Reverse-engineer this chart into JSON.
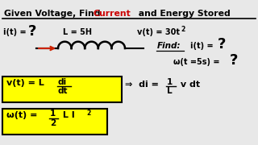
{
  "bg_color": "#e8e8e8",
  "title_part1": "Given Voltage, Find ",
  "title_current": "Current",
  "title_end": " and Energy Stored",
  "title_color": "#000000",
  "title_current_color": "#cc0000",
  "yellow": "#ffff00",
  "arrow_color": "#cc2200",
  "label_L": "L = 5H",
  "label_v": "v(t) = 30t",
  "label_v_exp": "2",
  "label_i": "i(t) = ",
  "find_label": "Find:",
  "find_i_label": "i(t) = ",
  "find_w_label": "ω(t =5s) = "
}
